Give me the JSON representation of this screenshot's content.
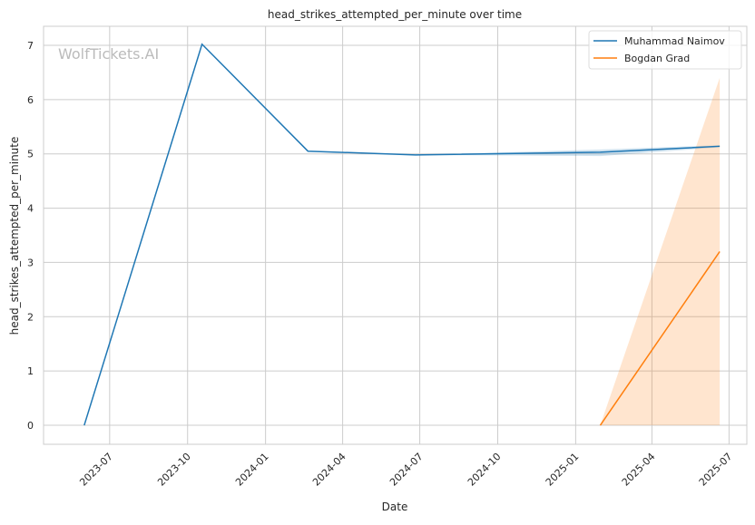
{
  "chart_data": {
    "type": "line",
    "title": "head_strikes_attempted_per_minute over time",
    "xlabel": "Date",
    "ylabel": "head_strikes_attempted_per_minute",
    "watermark": "WolfTickets.AI",
    "grid": true,
    "legend_placement": "top-right",
    "xlim": [
      "2023-04-14",
      "2025-07-22"
    ],
    "ylim": [
      -0.35,
      7.35
    ],
    "x_ticks": [
      "2023-07",
      "2023-10",
      "2024-01",
      "2024-04",
      "2024-07",
      "2024-10",
      "2025-01",
      "2025-04",
      "2025-07"
    ],
    "y_ticks": [
      0,
      1,
      2,
      3,
      4,
      5,
      6,
      7
    ],
    "series": [
      {
        "name": "Muhammad Naimov",
        "color": "#1f77b4",
        "x": [
          "2023-06-01",
          "2023-10-18",
          "2024-02-20",
          "2024-06-26",
          "2025-01-30",
          "2025-06-20"
        ],
        "y": [
          0,
          7.02,
          5.05,
          4.98,
          5.03,
          5.14
        ],
        "ci_lower": [
          0,
          7.02,
          5.05,
          4.98,
          4.96,
          5.12
        ],
        "ci_upper": [
          0,
          7.02,
          5.05,
          4.98,
          5.08,
          5.16
        ]
      },
      {
        "name": "Bogdan Grad",
        "color": "#ff7f0e",
        "x": [
          "2025-01-30",
          "2025-06-20"
        ],
        "y": [
          0,
          3.2
        ],
        "ci_lower": [
          0,
          0
        ],
        "ci_upper": [
          0,
          6.4
        ]
      }
    ]
  }
}
